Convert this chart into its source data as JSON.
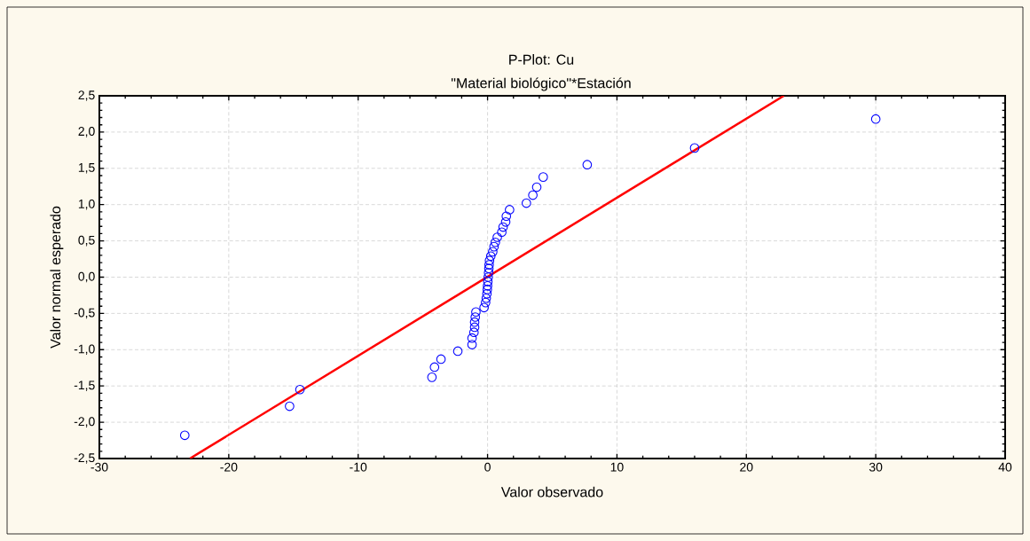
{
  "chart_data": {
    "type": "scatter",
    "title": "P-Plot: Cu",
    "subtitle": "\"Material biológico\"*Estación",
    "xlabel": "Valor observado",
    "ylabel": "Valor normal esperado",
    "xlim": [
      -30,
      40
    ],
    "ylim": [
      -2.5,
      2.5
    ],
    "xticks": [
      -30,
      -20,
      -10,
      0,
      10,
      20,
      30,
      40
    ],
    "yticks": [
      {
        "value": 2.5,
        "label": "2,5"
      },
      {
        "value": 2.0,
        "label": "2,0"
      },
      {
        "value": 1.5,
        "label": "1,5"
      },
      {
        "value": 1.0,
        "label": "1,0"
      },
      {
        "value": 0.5,
        "label": "0,5"
      },
      {
        "value": 0.0,
        "label": "0,0"
      },
      {
        "value": -0.5,
        "label": "-0,5"
      },
      {
        "value": -1.0,
        "label": "-1,0"
      },
      {
        "value": -1.5,
        "label": "-1,5"
      },
      {
        "value": -2.0,
        "label": "-2,0"
      },
      {
        "value": -2.5,
        "label": "-2,5"
      }
    ],
    "grid": true,
    "series": [
      {
        "color": "#0000ff",
        "marker": "circle",
        "x": [
          -23.4,
          -15.3,
          -14.5,
          -4.3,
          -4.1,
          -3.6,
          -2.3,
          -1.2,
          -1.2,
          -1.05,
          -1.0,
          -1.0,
          -0.95,
          -0.9,
          -0.27,
          -0.15,
          -0.1,
          -0.05,
          -0.02,
          0.0,
          0.02,
          0.05,
          0.08,
          0.1,
          0.12,
          0.15,
          0.25,
          0.4,
          0.5,
          0.6,
          0.75,
          1.1,
          1.2,
          1.4,
          1.45,
          1.7,
          3.0,
          3.5,
          3.8,
          4.3,
          7.7,
          16.0,
          30.0
        ],
        "values": [
          -2.18,
          -1.78,
          -1.55,
          -1.38,
          -1.24,
          -1.13,
          -1.02,
          -0.93,
          -0.84,
          -0.76,
          -0.69,
          -0.62,
          -0.55,
          -0.48,
          -0.42,
          -0.35,
          -0.29,
          -0.23,
          -0.17,
          -0.12,
          -0.06,
          0.0,
          0.06,
          0.12,
          0.17,
          0.23,
          0.29,
          0.35,
          0.42,
          0.48,
          0.55,
          0.62,
          0.69,
          0.76,
          0.84,
          0.93,
          1.02,
          1.13,
          1.24,
          1.38,
          1.55,
          1.78,
          2.18
        ]
      },
      {
        "type": "line",
        "color": "#ff0000",
        "marker": "none",
        "x": [
          -23.0,
          22.9
        ],
        "values": [
          -2.5,
          2.5
        ]
      }
    ]
  }
}
